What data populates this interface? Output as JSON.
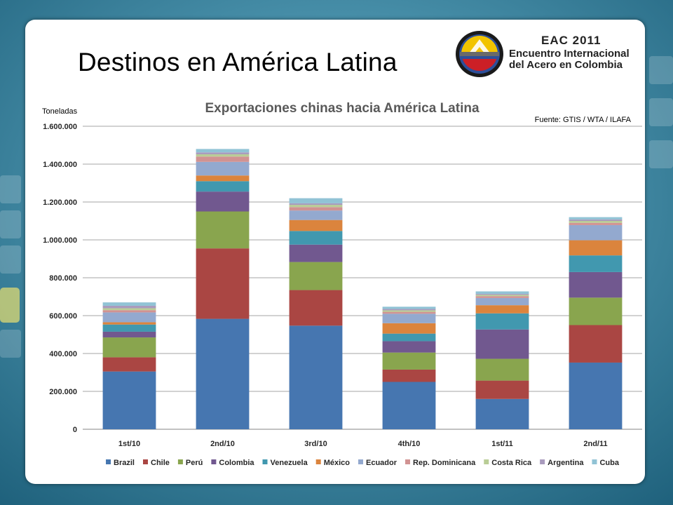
{
  "slide": {
    "title": "Destinos en América Latina",
    "logo": {
      "line1": "EAC 2011",
      "line2": "Encuentro Internacional",
      "line3": "del Acero en Colombia"
    },
    "source_note": "Fuente: GTIS  / WTA  / ILAFA"
  },
  "chart_data": {
    "type": "bar",
    "stacked": true,
    "title": "Exportaciones chinas hacia América Latina",
    "ylabel": "Toneladas",
    "xlabel": "",
    "ylim": [
      0,
      1600000
    ],
    "yticks": [
      0,
      200000,
      400000,
      600000,
      800000,
      1000000,
      1200000,
      1400000,
      1600000
    ],
    "ytick_labels": [
      "0",
      "200.000",
      "400.000",
      "600.000",
      "800.000",
      "1.000.000",
      "1.200.000",
      "1.400.000",
      "1.600.000"
    ],
    "grid": true,
    "legend_position": "bottom",
    "categories": [
      "1st/10",
      "2nd/10",
      "3rd/10",
      "4th/10",
      "1st/11",
      "2nd/11"
    ],
    "series": [
      {
        "name": "Brazil",
        "color": "#4676b0",
        "values": [
          305000,
          583000,
          547000,
          250000,
          160000,
          352000
        ]
      },
      {
        "name": "Chile",
        "color": "#aa4643",
        "values": [
          75000,
          372000,
          188000,
          65000,
          97000,
          198000
        ]
      },
      {
        "name": "Perú",
        "color": "#89a54e",
        "values": [
          105000,
          195000,
          148000,
          90000,
          115000,
          145000
        ]
      },
      {
        "name": "Colombia",
        "color": "#71588f",
        "values": [
          30000,
          105000,
          92000,
          60000,
          155000,
          135000
        ]
      },
      {
        "name": "Venezuela",
        "color": "#4198af",
        "values": [
          38000,
          55000,
          72000,
          40000,
          85000,
          88000
        ]
      },
      {
        "name": "México",
        "color": "#db843d",
        "values": [
          12000,
          30000,
          58000,
          55000,
          43000,
          80000
        ]
      },
      {
        "name": "Ecuador",
        "color": "#93a9cf",
        "values": [
          52000,
          72000,
          50000,
          50000,
          38000,
          80000
        ]
      },
      {
        "name": "Rep. Dominicana",
        "color": "#d19392",
        "values": [
          12000,
          28000,
          18000,
          10000,
          10000,
          12000
        ]
      },
      {
        "name": "Costa Rica",
        "color": "#b9cd96",
        "values": [
          10000,
          12000,
          12000,
          8000,
          7000,
          10000
        ]
      },
      {
        "name": "Argentina",
        "color": "#a99bbd",
        "values": [
          13000,
          10000,
          8000,
          7000,
          5000,
          8000
        ]
      },
      {
        "name": "Cuba",
        "color": "#91c3d5",
        "values": [
          18000,
          18000,
          27000,
          12000,
          13000,
          12000
        ]
      }
    ]
  }
}
